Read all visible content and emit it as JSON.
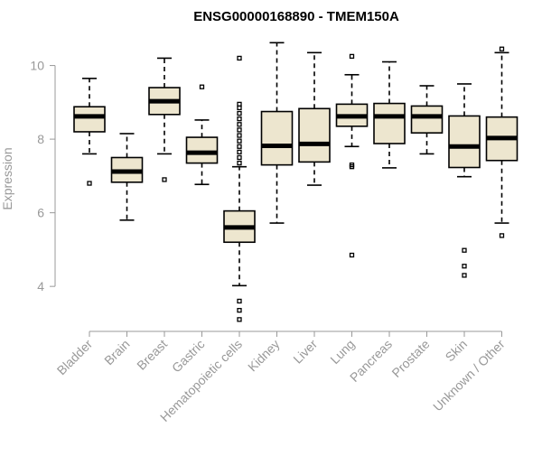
{
  "chart_data": {
    "type": "boxplot",
    "title": "ENSG00000168890 - TMEM150A",
    "ylabel": "Expression",
    "xlabel": "",
    "ylim": [
      2.9,
      10.75
    ],
    "yticks": [
      4,
      6,
      8,
      10
    ],
    "grid": false,
    "legend": "none",
    "colors": {
      "box_fill": "#ede6cf",
      "box_stroke": "#000000",
      "axis": "#999999",
      "tick_label": "#999999"
    },
    "categories": [
      "Bladder",
      "Brain",
      "Breast",
      "Gastric",
      "Hematopoietic cells",
      "Kidney",
      "Liver",
      "Lung",
      "Pancreas",
      "Prostate",
      "Skin",
      "Unknown / Other"
    ],
    "boxes": [
      {
        "name": "Bladder",
        "whisker_low": 7.6,
        "q1": 8.2,
        "median": 8.62,
        "q3": 8.88,
        "whisker_high": 9.65,
        "outliers": [
          6.8
        ]
      },
      {
        "name": "Brain",
        "whisker_low": 5.8,
        "q1": 6.83,
        "median": 7.12,
        "q3": 7.5,
        "whisker_high": 8.15,
        "outliers": []
      },
      {
        "name": "Breast",
        "whisker_low": 7.6,
        "q1": 8.67,
        "median": 9.03,
        "q3": 9.4,
        "whisker_high": 10.2,
        "outliers": [
          6.9
        ]
      },
      {
        "name": "Gastric",
        "whisker_low": 6.77,
        "q1": 7.35,
        "median": 7.63,
        "q3": 8.05,
        "whisker_high": 8.52,
        "outliers": [
          9.42
        ]
      },
      {
        "name": "Hematopoietic cells",
        "whisker_low": 4.02,
        "q1": 5.2,
        "median": 5.6,
        "q3": 6.05,
        "whisker_high": 7.25,
        "outliers": [
          3.1,
          3.35,
          3.6,
          7.35,
          7.5,
          7.65,
          7.8,
          7.95,
          8.1,
          8.25,
          8.4,
          8.55,
          8.7,
          8.85,
          8.95,
          10.2
        ]
      },
      {
        "name": "Kidney",
        "whisker_low": 5.72,
        "q1": 7.3,
        "median": 7.82,
        "q3": 8.75,
        "whisker_high": 10.62,
        "outliers": []
      },
      {
        "name": "Liver",
        "whisker_low": 6.75,
        "q1": 7.38,
        "median": 7.87,
        "q3": 8.83,
        "whisker_high": 10.35,
        "outliers": []
      },
      {
        "name": "Lung",
        "whisker_low": 7.8,
        "q1": 8.35,
        "median": 8.62,
        "q3": 8.95,
        "whisker_high": 9.75,
        "outliers": [
          4.85,
          7.25,
          7.3,
          10.25
        ]
      },
      {
        "name": "Pancreas",
        "whisker_low": 7.22,
        "q1": 7.88,
        "median": 8.62,
        "q3": 8.97,
        "whisker_high": 10.1,
        "outliers": []
      },
      {
        "name": "Prostate",
        "whisker_low": 7.6,
        "q1": 8.17,
        "median": 8.62,
        "q3": 8.9,
        "whisker_high": 9.45,
        "outliers": []
      },
      {
        "name": "Skin",
        "whisker_low": 6.98,
        "q1": 7.23,
        "median": 7.8,
        "q3": 8.63,
        "whisker_high": 9.5,
        "outliers": [
          4.3,
          4.55,
          4.98
        ]
      },
      {
        "name": "Unknown / Other",
        "whisker_low": 5.72,
        "q1": 7.42,
        "median": 8.03,
        "q3": 8.6,
        "whisker_high": 10.35,
        "outliers": [
          5.38,
          10.45
        ]
      }
    ]
  }
}
